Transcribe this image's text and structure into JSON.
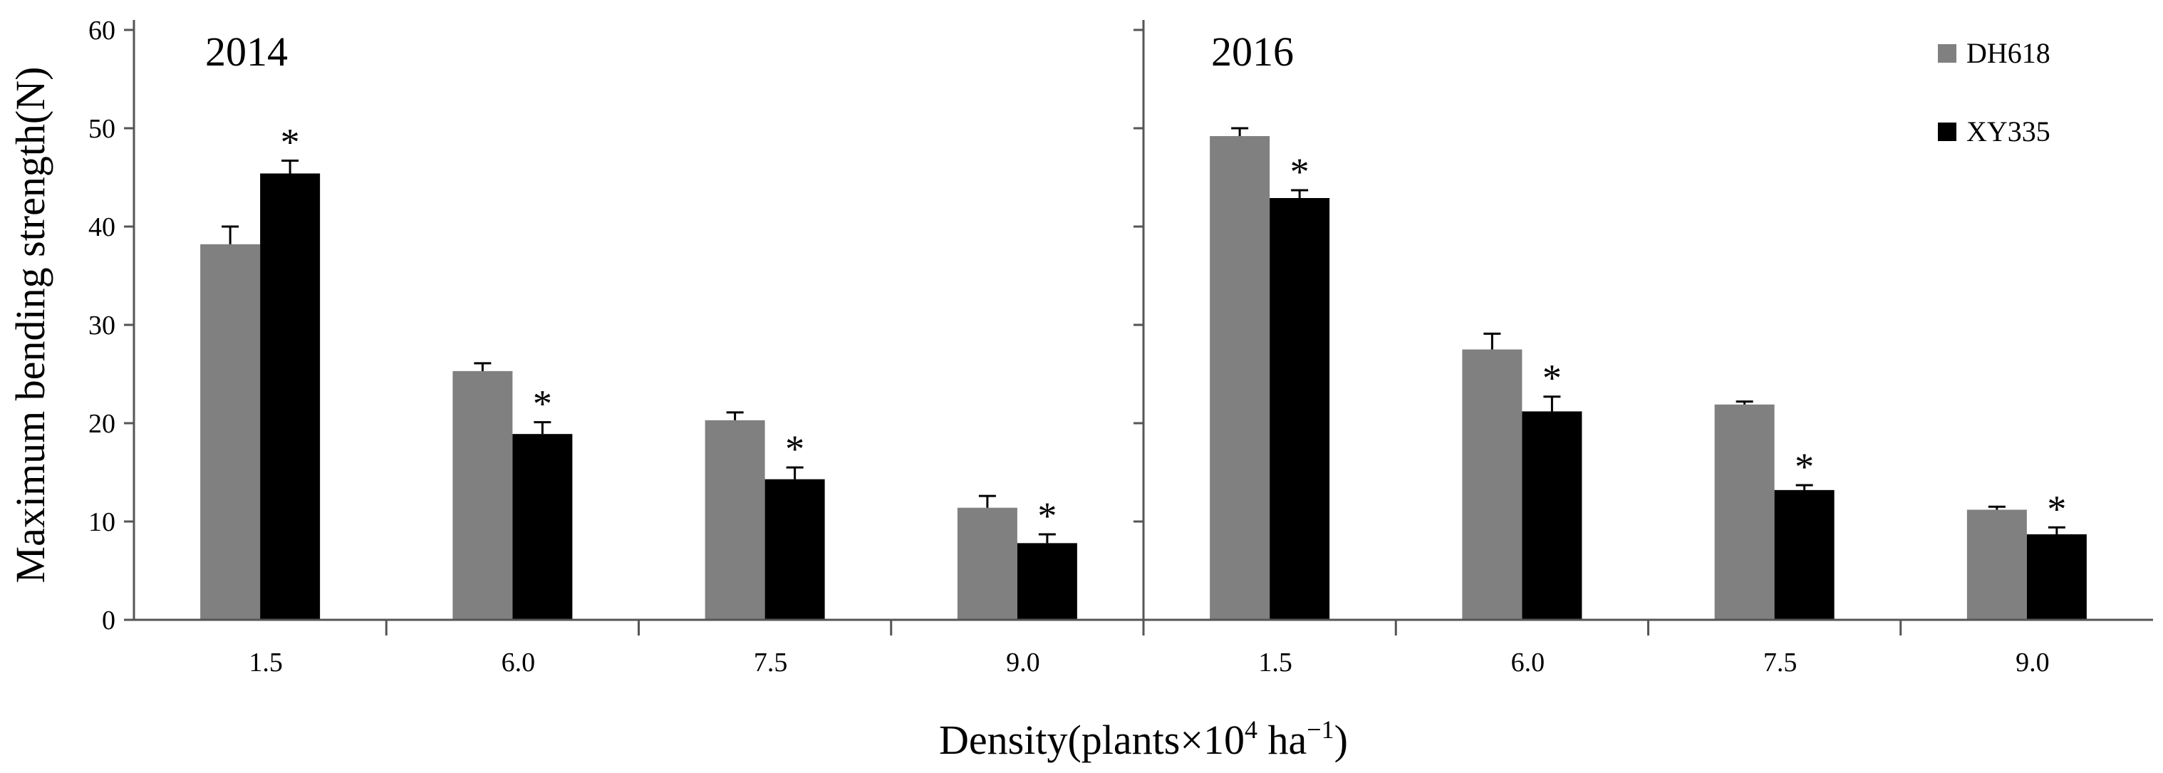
{
  "chart_data": {
    "type": "bar",
    "ylabel": "Maximum bending strength(N)",
    "xlabel_parts": {
      "prefix": "Density(plants×10",
      "exp1": "4",
      "middle": " ha",
      "exp2": "−1",
      "suffix": ")"
    },
    "ylim": [
      0,
      60
    ],
    "yticks": [
      "0",
      "10",
      "20",
      "30",
      "40",
      "50",
      "60"
    ],
    "legend": [
      {
        "name": "DH618",
        "color": "#808080"
      },
      {
        "name": "XY335",
        "color": "#000000"
      }
    ],
    "panels": [
      {
        "year": "2014",
        "categories": [
          "1.5",
          "6.0",
          "7.5",
          "9.0"
        ],
        "series": [
          {
            "name": "DH618",
            "color": "#808080",
            "values": [
              38.2,
              25.3,
              20.3,
              11.4
            ],
            "errors": [
              1.8,
              0.8,
              0.8,
              1.2
            ]
          },
          {
            "name": "XY335",
            "color": "#000000",
            "values": [
              45.4,
              18.9,
              14.3,
              7.8
            ],
            "errors": [
              1.3,
              1.2,
              1.2,
              0.9
            ]
          }
        ],
        "significance": [
          "*",
          "*",
          "*",
          "*"
        ]
      },
      {
        "year": "2016",
        "categories": [
          "1.5",
          "6.0",
          "7.5",
          "9.0"
        ],
        "series": [
          {
            "name": "DH618",
            "color": "#808080",
            "values": [
              49.2,
              27.5,
              21.9,
              11.2
            ],
            "errors": [
              0.8,
              1.6,
              0.3,
              0.3
            ]
          },
          {
            "name": "XY335",
            "color": "#000000",
            "values": [
              42.9,
              21.2,
              13.2,
              8.7
            ],
            "errors": [
              0.8,
              1.5,
              0.5,
              0.7
            ]
          }
        ],
        "significance": [
          "*",
          "*",
          "*",
          "*"
        ]
      }
    ]
  }
}
